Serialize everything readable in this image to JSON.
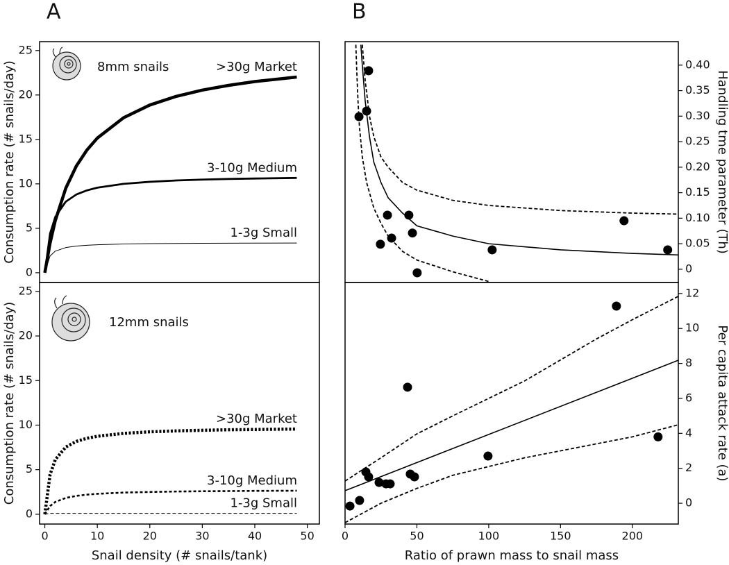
{
  "chart_data": [
    {
      "type": "line",
      "panel_label": "A",
      "title": "8mm snails",
      "ylabel": "Consumption rate (# snails/day)",
      "x": [
        0,
        1,
        2,
        4,
        6,
        8,
        10,
        15,
        20,
        25,
        30,
        35,
        40,
        48
      ],
      "xlim": [
        -1,
        52.3
      ],
      "ylim": [
        -1.1,
        26
      ],
      "yticks": [
        0,
        5,
        10,
        15,
        20,
        25
      ],
      "series": [
        {
          "name": ">30g Market",
          "color": "#000000",
          "line_width": 4.5,
          "dash": false,
          "values": [
            0,
            3.33,
            5.88,
            9.52,
            12.0,
            13.79,
            15.15,
            17.44,
            18.87,
            19.84,
            20.55,
            21.08,
            21.51,
            22.02
          ]
        },
        {
          "name": "3-10g Medium",
          "color": "#000000",
          "line_width": 2.8,
          "dash": false,
          "values": [
            0,
            4.4,
            6.29,
            8.0,
            8.8,
            9.26,
            9.57,
            10.0,
            10.23,
            10.38,
            10.48,
            10.55,
            10.6,
            10.67
          ]
        },
        {
          "name": "1-3g Small",
          "color": "#000000",
          "line_width": 1,
          "dash": false,
          "values": [
            0,
            1.89,
            2.43,
            2.83,
            3.0,
            3.09,
            3.15,
            3.23,
            3.27,
            3.29,
            3.31,
            3.32,
            3.33,
            3.34
          ]
        }
      ]
    },
    {
      "type": "line",
      "title": "12mm snails",
      "ylabel": "Consumption rate (# snails/day)",
      "xlabel": "Snail density (# snails/tank)",
      "x": [
        0,
        1,
        2,
        4,
        6,
        8,
        10,
        15,
        20,
        25,
        30,
        35,
        40,
        48
      ],
      "xlim": [
        -1,
        52.3
      ],
      "xticks": [
        0,
        10,
        20,
        30,
        40,
        50
      ],
      "ylim": [
        -1.1,
        26
      ],
      "yticks": [
        0,
        5,
        10,
        15,
        20,
        25
      ],
      "series": [
        {
          "name": ">30g Market",
          "color": "#000000",
          "line_width": 4.5,
          "dash": true,
          "values": [
            0,
            4.45,
            6.13,
            7.54,
            8.17,
            8.52,
            8.75,
            9.07,
            9.25,
            9.35,
            9.42,
            9.48,
            9.51,
            9.56
          ]
        },
        {
          "name": "3-10g Medium",
          "color": "#000000",
          "line_width": 2.6,
          "dash": true,
          "values": [
            0,
            0.92,
            1.38,
            1.83,
            2.06,
            2.2,
            2.29,
            2.43,
            2.5,
            2.55,
            2.58,
            2.6,
            2.62,
            2.64
          ]
        },
        {
          "name": "1-3g Small",
          "color": "#000000",
          "line_width": 1,
          "dash": true,
          "values": [
            0,
            0.1,
            0.1,
            0.1,
            0.1,
            0.1,
            0.1,
            0.1,
            0.1,
            0.1,
            0.1,
            0.1,
            0.1,
            0.1
          ]
        }
      ]
    },
    {
      "type": "scatter",
      "panel_label": "B",
      "ylabel": "Handling tme parameter (Th)",
      "y_axis_side": "right",
      "xlim": [
        0,
        232
      ],
      "ylim": [
        -0.026,
        0.446
      ],
      "yticks": [
        0,
        0.05,
        {
          "value": 0.1,
          "label": "0.10"
        },
        0.15,
        {
          "value": 0.2,
          "label": "0.20"
        },
        0.25,
        {
          "value": 0.3,
          "label": "0.30"
        },
        0.35,
        {
          "value": 0.4,
          "label": "0.40"
        }
      ],
      "series": [
        {
          "style": "markers",
          "color": "#000000",
          "x": [
            16.4,
            9.7,
            15.0,
            29.5,
            44.4,
            32.4,
            24.6,
            46.9,
            50.2,
            102.4,
            194.2,
            224.6
          ],
          "values": [
            0.389,
            0.299,
            0.31,
            0.106,
            0.106,
            0.061,
            0.049,
            0.071,
            -0.007,
            0.038,
            0.095,
            0.038
          ]
        },
        {
          "style": "line",
          "color": "#000000",
          "line_width": 1.6,
          "dash": false,
          "x": [
            11,
            12,
            14,
            17,
            20,
            25,
            30,
            40,
            50,
            75,
            100,
            150,
            200,
            232
          ],
          "values": [
            0.44,
            0.4,
            0.33,
            0.26,
            0.21,
            0.17,
            0.14,
            0.11,
            0.085,
            0.065,
            0.05,
            0.038,
            0.031,
            0.028
          ]
        },
        {
          "style": "line",
          "color": "#000000",
          "line_width": 1.8,
          "dash": true,
          "x": [
            12,
            14,
            17,
            20,
            25,
            30,
            40,
            50,
            75,
            100,
            150,
            200,
            232
          ],
          "values": [
            0.44,
            0.37,
            0.3,
            0.26,
            0.22,
            0.2,
            0.17,
            0.155,
            0.135,
            0.125,
            0.115,
            0.11,
            0.108
          ]
        },
        {
          "style": "line",
          "color": "#000000",
          "line_width": 1.8,
          "dash": true,
          "x": [
            7.5,
            8,
            9,
            10,
            12,
            15,
            20,
            25,
            30,
            40,
            50,
            75,
            100
          ],
          "values": [
            0.44,
            0.4,
            0.33,
            0.28,
            0.22,
            0.17,
            0.12,
            0.09,
            0.065,
            0.035,
            0.018,
            -0.005,
            -0.024
          ]
        }
      ]
    },
    {
      "type": "scatter",
      "ylabel": "Per capita attack rate (a)",
      "xlabel": "Ratio of prawn mass to snail mass",
      "y_axis_side": "right",
      "xlim": [
        0,
        232
      ],
      "xticks": [
        0,
        50,
        100,
        150,
        200
      ],
      "ylim": [
        -1.19,
        12.63
      ],
      "yticks": [
        0,
        2,
        4,
        6,
        8,
        10,
        12
      ],
      "series": [
        {
          "style": "markers",
          "color": "#000000",
          "x": [
            3.4,
            10.1,
            14.5,
            16.4,
            23.7,
            28.5,
            31.4,
            43.5,
            45.4,
            48.3,
            99.5,
            188.9,
            217.9
          ],
          "values": [
            -0.16,
            0.16,
            1.79,
            1.51,
            1.19,
            1.11,
            1.11,
            6.64,
            1.67,
            1.51,
            2.7,
            11.28,
            3.8
          ]
        },
        {
          "style": "line",
          "color": "#000000",
          "line_width": 1.6,
          "dash": false,
          "x": [
            0,
            232
          ],
          "values": [
            0.72,
            8.18
          ]
        },
        {
          "style": "line",
          "color": "#000000",
          "line_width": 1.8,
          "dash": true,
          "x": [
            0,
            25,
            50,
            75,
            100,
            125,
            150,
            175,
            200,
            232
          ],
          "values": [
            1.27,
            2.6,
            3.97,
            5.0,
            6.0,
            7.0,
            8.2,
            9.4,
            10.5,
            11.84
          ]
        },
        {
          "style": "line",
          "color": "#000000",
          "line_width": 1.8,
          "dash": true,
          "x": [
            0,
            25,
            50,
            75,
            100,
            125,
            150,
            175,
            200,
            232
          ],
          "values": [
            -1.11,
            0.0,
            0.85,
            1.6,
            2.1,
            2.6,
            3.0,
            3.4,
            3.8,
            4.49
          ]
        }
      ]
    }
  ]
}
